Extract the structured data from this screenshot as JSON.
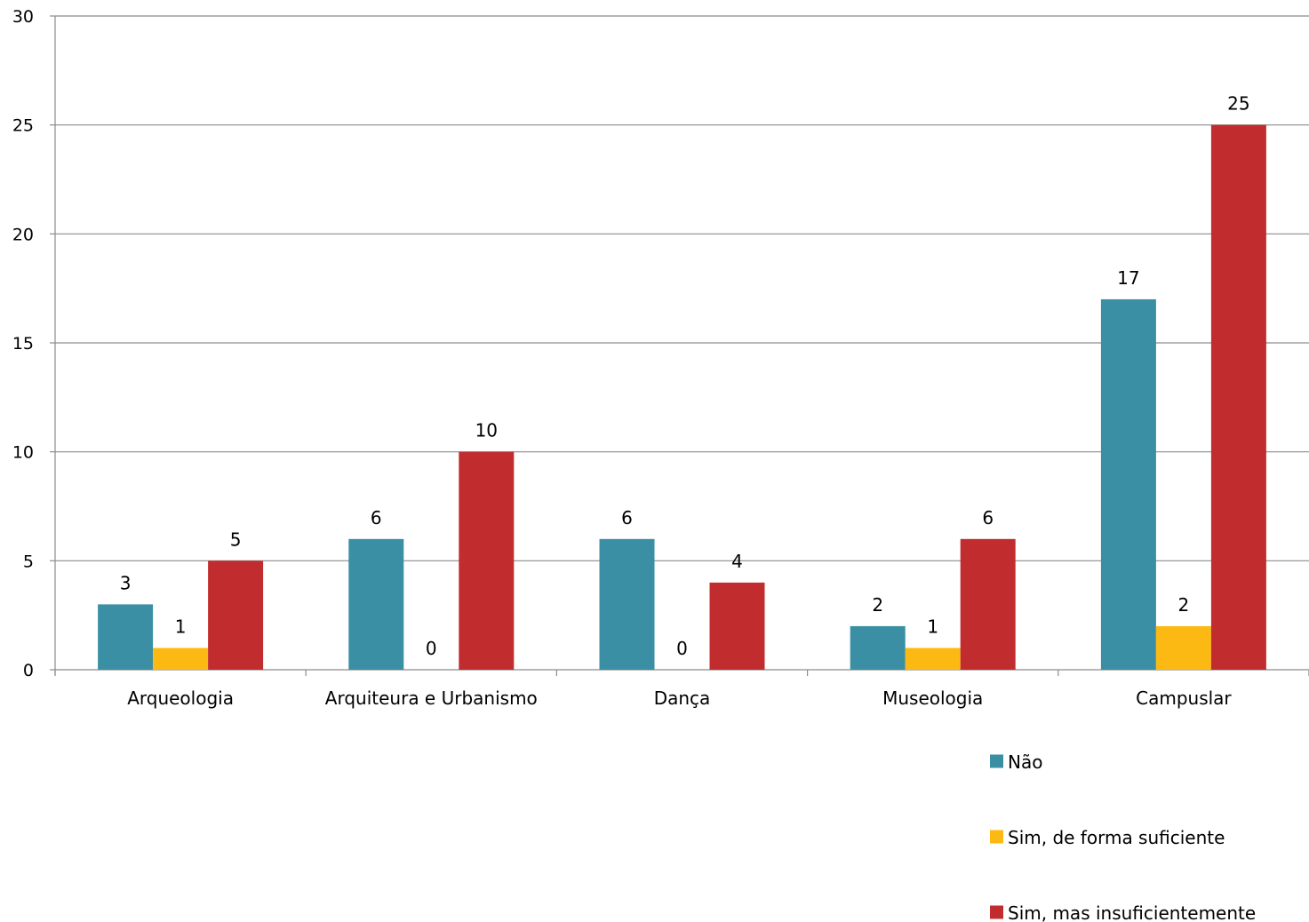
{
  "chart_data": {
    "type": "bar",
    "categories": [
      "Arqueologia",
      "Arquiteura e Urbanismo",
      "Dança",
      "Museologia",
      "Campuslar"
    ],
    "series": [
      {
        "name": "Não",
        "color": "#3A8FA4",
        "values": [
          3,
          6,
          6,
          2,
          17
        ]
      },
      {
        "name": "Sim, de forma suficiente",
        "color": "#FDB913",
        "values": [
          1,
          0,
          0,
          1,
          2
        ]
      },
      {
        "name": "Sim, mas insuficientemente",
        "color": "#C12D2F",
        "values": [
          5,
          10,
          4,
          6,
          25
        ]
      }
    ],
    "ylim": [
      0,
      30
    ],
    "yticks": [
      0,
      5,
      10,
      15,
      20,
      25,
      30
    ],
    "grid": true,
    "legend_position": "bottom-right",
    "title": "",
    "xlabel": "",
    "ylabel": ""
  }
}
